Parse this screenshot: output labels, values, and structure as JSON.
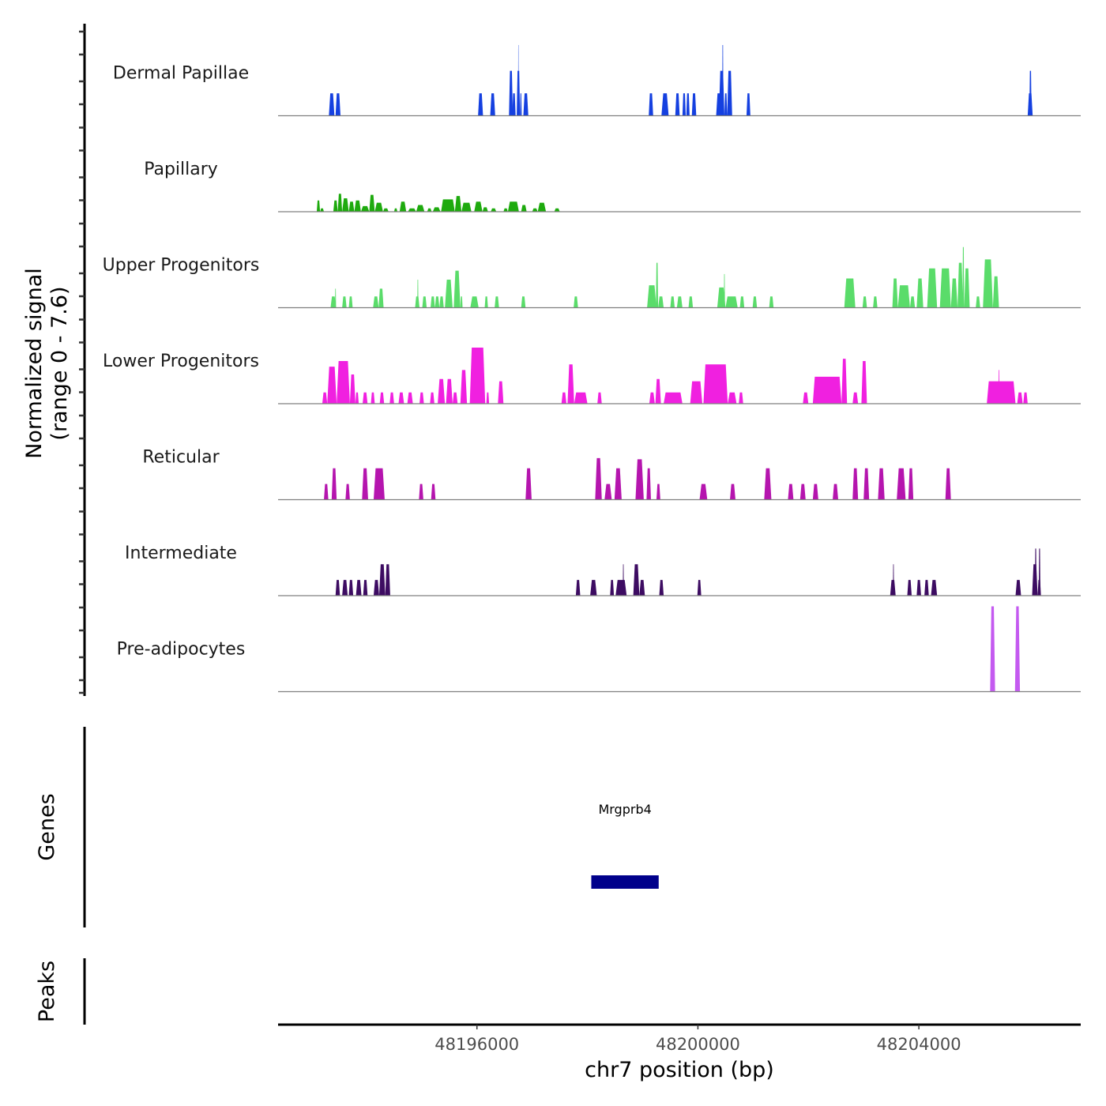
{
  "chart_data": {
    "type": "area",
    "title": "",
    "xlabel": "chr7 position (bp)",
    "ylabel": "Normalized signal\n(range 0 - 7.6)",
    "ylabel_lines": [
      "Normalized signal",
      "(range 0 - 7.6)"
    ],
    "ylim": [
      0,
      7.6
    ],
    "xlim": [
      48192400,
      48206930
    ],
    "x_ticks": [
      48196000,
      48200000,
      48204000
    ],
    "x_tick_labels": [
      "48196000",
      "48200000",
      "48204000"
    ],
    "grid": false,
    "legend": "none",
    "panels": {
      "genes_label": "Genes",
      "peaks_label": "Peaks"
    },
    "genes": [
      {
        "name": "Mrgprb4",
        "start": 48198070,
        "end": 48199290,
        "color": "#00008B"
      }
    ],
    "peaks": [],
    "series": [
      {
        "name": "Dermal Papillae",
        "color": "#1540E0",
        "bins": [
          [
            48193320,
            48193420,
            2.0
          ],
          [
            48193440,
            48193530,
            2.0
          ],
          [
            48196020,
            48196110,
            2.0
          ],
          [
            48196240,
            48196330,
            2.0
          ],
          [
            48196580,
            48196650,
            4.0
          ],
          [
            48196640,
            48196700,
            2.0
          ],
          [
            48196720,
            48196780,
            4.0
          ],
          [
            48196745,
            48196755,
            6.3
          ],
          [
            48196780,
            48196810,
            2.0
          ],
          [
            48196840,
            48196930,
            2.0
          ],
          [
            48199110,
            48199190,
            2.0
          ],
          [
            48199340,
            48199470,
            2.0
          ],
          [
            48199590,
            48199670,
            2.0
          ],
          [
            48199720,
            48199780,
            2.0
          ],
          [
            48199790,
            48199850,
            2.0
          ],
          [
            48199890,
            48199970,
            2.0
          ],
          [
            48200330,
            48200430,
            2.0
          ],
          [
            48200380,
            48200480,
            4.0
          ],
          [
            48200440,
            48200460,
            6.3
          ],
          [
            48200480,
            48200530,
            2.0
          ],
          [
            48200530,
            48200620,
            4.0
          ],
          [
            48200880,
            48200950,
            2.0
          ],
          [
            48205970,
            48206060,
            2.0
          ],
          [
            48206000,
            48206040,
            4.0
          ]
        ]
      },
      {
        "name": "Papillary",
        "color": "#1EAA0E",
        "bins": [
          [
            48193100,
            48193160,
            1.0
          ],
          [
            48193160,
            48193230,
            0.3
          ],
          [
            48193400,
            48193480,
            1.0
          ],
          [
            48193480,
            48193560,
            1.6
          ],
          [
            48193560,
            48193680,
            1.2
          ],
          [
            48193680,
            48193780,
            0.9
          ],
          [
            48193780,
            48193900,
            1.0
          ],
          [
            48193900,
            48194050,
            0.5
          ],
          [
            48194050,
            48194150,
            1.5
          ],
          [
            48194150,
            48194300,
            0.8
          ],
          [
            48194300,
            48194400,
            0.3
          ],
          [
            48194500,
            48194560,
            0.3
          ],
          [
            48194600,
            48194720,
            0.9
          ],
          [
            48194750,
            48194900,
            0.3
          ],
          [
            48194900,
            48195050,
            0.6
          ],
          [
            48195100,
            48195180,
            0.3
          ],
          [
            48195200,
            48195340,
            0.4
          ],
          [
            48195350,
            48195600,
            1.1
          ],
          [
            48195600,
            48195720,
            1.4
          ],
          [
            48195720,
            48195900,
            0.8
          ],
          [
            48195950,
            48196100,
            0.9
          ],
          [
            48196100,
            48196200,
            0.4
          ],
          [
            48196250,
            48196350,
            0.3
          ],
          [
            48196480,
            48196560,
            0.3
          ],
          [
            48196560,
            48196760,
            0.9
          ],
          [
            48196800,
            48196900,
            0.6
          ],
          [
            48197000,
            48197100,
            0.3
          ],
          [
            48197100,
            48197250,
            0.8
          ],
          [
            48197400,
            48197500,
            0.3
          ]
        ]
      },
      {
        "name": "Upper Progenitors",
        "color": "#5ADC6A",
        "bins": [
          [
            48193350,
            48193450,
            1.0
          ],
          [
            48193430,
            48193450,
            1.7
          ],
          [
            48193560,
            48193640,
            1.0
          ],
          [
            48193680,
            48193750,
            1.0
          ],
          [
            48194120,
            48194220,
            1.0
          ],
          [
            48194220,
            48194310,
            1.7
          ],
          [
            48194880,
            48194960,
            1.0
          ],
          [
            48194920,
            48194940,
            2.5
          ],
          [
            48195010,
            48195090,
            1.0
          ],
          [
            48195160,
            48195240,
            1.0
          ],
          [
            48195240,
            48195320,
            1.0
          ],
          [
            48195320,
            48195400,
            1.0
          ],
          [
            48195420,
            48195560,
            2.5
          ],
          [
            48195580,
            48195700,
            3.3
          ],
          [
            48195700,
            48195740,
            1.0
          ],
          [
            48195880,
            48196030,
            1.0
          ],
          [
            48196140,
            48196200,
            1.0
          ],
          [
            48196320,
            48196400,
            1.0
          ],
          [
            48196800,
            48196880,
            1.0
          ],
          [
            48197750,
            48197830,
            1.0
          ],
          [
            48199080,
            48199250,
            2.0
          ],
          [
            48199240,
            48199280,
            4.0
          ],
          [
            48199280,
            48199380,
            1.0
          ],
          [
            48199500,
            48199580,
            1.0
          ],
          [
            48199620,
            48199720,
            1.0
          ],
          [
            48199830,
            48199910,
            1.0
          ],
          [
            48200350,
            48200500,
            1.8
          ],
          [
            48200470,
            48200490,
            3.0
          ],
          [
            48200500,
            48200720,
            1.0
          ],
          [
            48200760,
            48200840,
            1.0
          ],
          [
            48200990,
            48201070,
            1.0
          ],
          [
            48201290,
            48201370,
            1.0
          ],
          [
            48202650,
            48202850,
            2.6
          ],
          [
            48202980,
            48203060,
            1.0
          ],
          [
            48203170,
            48203250,
            1.0
          ],
          [
            48203520,
            48203620,
            2.6
          ],
          [
            48203620,
            48203840,
            2.0
          ],
          [
            48203840,
            48203930,
            1.0
          ],
          [
            48203960,
            48204080,
            2.6
          ],
          [
            48204150,
            48204330,
            3.5
          ],
          [
            48204380,
            48204580,
            3.5
          ],
          [
            48204580,
            48204700,
            2.6
          ],
          [
            48204700,
            48204800,
            4.0
          ],
          [
            48204790,
            48204820,
            5.4
          ],
          [
            48204820,
            48204920,
            3.5
          ],
          [
            48205030,
            48205110,
            1.0
          ],
          [
            48205160,
            48205340,
            4.3
          ],
          [
            48205340,
            48205450,
            2.8
          ]
        ]
      },
      {
        "name": "Lower Progenitors",
        "color": "#F020E0",
        "bins": [
          [
            48193200,
            48193290,
            1.0
          ],
          [
            48193290,
            48193460,
            3.3
          ],
          [
            48193460,
            48193700,
            3.8
          ],
          [
            48193700,
            48193800,
            2.6
          ],
          [
            48193800,
            48193860,
            1.0
          ],
          [
            48193930,
            48194020,
            1.0
          ],
          [
            48194080,
            48194150,
            1.0
          ],
          [
            48194240,
            48194320,
            1.0
          ],
          [
            48194420,
            48194500,
            1.0
          ],
          [
            48194580,
            48194680,
            1.0
          ],
          [
            48194740,
            48194840,
            1.0
          ],
          [
            48194960,
            48195040,
            1.0
          ],
          [
            48195150,
            48195230,
            1.0
          ],
          [
            48195290,
            48195420,
            2.2
          ],
          [
            48195440,
            48195560,
            2.2
          ],
          [
            48195560,
            48195650,
            1.0
          ],
          [
            48195700,
            48195820,
            3.0
          ],
          [
            48195870,
            48196150,
            5.0
          ],
          [
            48196170,
            48196220,
            1.0
          ],
          [
            48196380,
            48196480,
            2.0
          ],
          [
            48197530,
            48197620,
            1.0
          ],
          [
            48197640,
            48197760,
            3.5
          ],
          [
            48197760,
            48198000,
            1.0
          ],
          [
            48198180,
            48198260,
            1.0
          ],
          [
            48199120,
            48199220,
            1.0
          ],
          [
            48199230,
            48199330,
            2.2
          ],
          [
            48199380,
            48199720,
            1.0
          ],
          [
            48199860,
            48200080,
            2.0
          ],
          [
            48200100,
            48200540,
            3.5
          ],
          [
            48200540,
            48200700,
            1.0
          ],
          [
            48200740,
            48200820,
            1.0
          ],
          [
            48201900,
            48202000,
            1.0
          ],
          [
            48202080,
            48202600,
            2.4
          ],
          [
            48202600,
            48202700,
            4.0
          ],
          [
            48202800,
            48202900,
            1.0
          ],
          [
            48202960,
            48203060,
            3.8
          ],
          [
            48205230,
            48205750,
            2.0
          ],
          [
            48205440,
            48205460,
            3.0
          ],
          [
            48205780,
            48205880,
            1.0
          ],
          [
            48205890,
            48205970,
            1.0
          ]
        ]
      },
      {
        "name": "Reticular",
        "color": "#B515AE",
        "bins": [
          [
            48193230,
            48193310,
            1.4
          ],
          [
            48193370,
            48193460,
            2.8
          ],
          [
            48193620,
            48193700,
            1.4
          ],
          [
            48193920,
            48194030,
            2.8
          ],
          [
            48194130,
            48194330,
            2.8
          ],
          [
            48194950,
            48195030,
            1.4
          ],
          [
            48195170,
            48195250,
            1.4
          ],
          [
            48196880,
            48196990,
            2.8
          ],
          [
            48198140,
            48198260,
            3.7
          ],
          [
            48198310,
            48198440,
            1.4
          ],
          [
            48198490,
            48198620,
            2.8
          ],
          [
            48198870,
            48199020,
            3.6
          ],
          [
            48199070,
            48199150,
            2.8
          ],
          [
            48199250,
            48199320,
            1.4
          ],
          [
            48200030,
            48200170,
            1.4
          ],
          [
            48200580,
            48200680,
            1.4
          ],
          [
            48201200,
            48201330,
            2.8
          ],
          [
            48201630,
            48201730,
            1.4
          ],
          [
            48201850,
            48201950,
            1.4
          ],
          [
            48202080,
            48202180,
            1.4
          ],
          [
            48202440,
            48202540,
            1.4
          ],
          [
            48202800,
            48202900,
            2.8
          ],
          [
            48203000,
            48203100,
            2.8
          ],
          [
            48203260,
            48203380,
            2.8
          ],
          [
            48203600,
            48203760,
            2.8
          ],
          [
            48203810,
            48203900,
            2.8
          ],
          [
            48204480,
            48204580,
            2.8
          ]
        ]
      },
      {
        "name": "Intermediate",
        "color": "#3D0C62",
        "bins": [
          [
            48193440,
            48193520,
            1.4
          ],
          [
            48193560,
            48193660,
            1.4
          ],
          [
            48193680,
            48193760,
            1.4
          ],
          [
            48193810,
            48193910,
            1.4
          ],
          [
            48193940,
            48194020,
            1.4
          ],
          [
            48194130,
            48194230,
            1.4
          ],
          [
            48194230,
            48194340,
            2.8
          ],
          [
            48194340,
            48194430,
            2.8
          ],
          [
            48197790,
            48197870,
            1.4
          ],
          [
            48198050,
            48198170,
            1.4
          ],
          [
            48198410,
            48198480,
            1.4
          ],
          [
            48198510,
            48198710,
            1.4
          ],
          [
            48198640,
            48198660,
            2.8
          ],
          [
            48198830,
            48198940,
            2.8
          ],
          [
            48198940,
            48199040,
            1.4
          ],
          [
            48199300,
            48199380,
            1.4
          ],
          [
            48199990,
            48200060,
            1.4
          ],
          [
            48203480,
            48203580,
            1.4
          ],
          [
            48203530,
            48203550,
            2.8
          ],
          [
            48203790,
            48203870,
            1.4
          ],
          [
            48203960,
            48204040,
            1.4
          ],
          [
            48204100,
            48204180,
            1.4
          ],
          [
            48204220,
            48204330,
            1.4
          ],
          [
            48205750,
            48205850,
            1.4
          ],
          [
            48206050,
            48206150,
            2.8
          ],
          [
            48206100,
            48206130,
            4.2
          ],
          [
            48206170,
            48206200,
            4.2
          ],
          [
            48206150,
            48206210,
            1.4
          ]
        ]
      },
      {
        "name": "Pre-adipocytes",
        "color": "#C45AF0",
        "bins": [
          [
            48205290,
            48205380,
            7.6
          ],
          [
            48205740,
            48205830,
            7.6
          ]
        ]
      }
    ]
  }
}
